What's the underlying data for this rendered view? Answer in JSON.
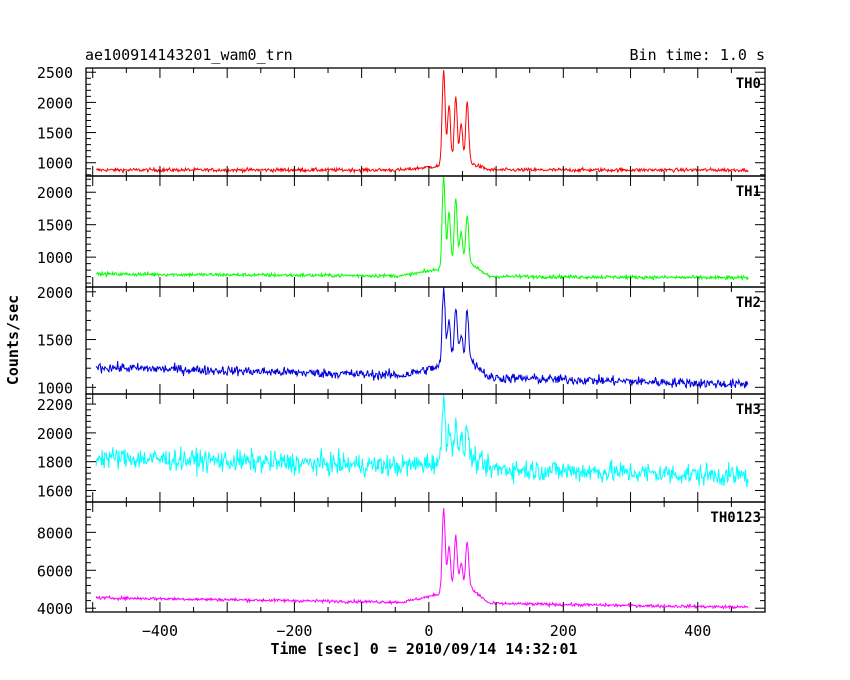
{
  "chart_data": {
    "type": "line",
    "title": "ae100914143201_wam0_trn",
    "bin_time_label": "Bin time: 1.0 s",
    "xlabel": "Time [sec] 0 = 2010/09/14 14:32:01",
    "ylabel": "Counts/sec",
    "xlim": [
      -510,
      500
    ],
    "x_range": [
      -495,
      475
    ],
    "x_ticks": [
      -400,
      -200,
      0,
      200,
      400
    ],
    "x_tick_labels": [
      "−400",
      "−200",
      "0",
      "200",
      "400"
    ],
    "grid": false,
    "panels": [
      {
        "name": "TH0",
        "color": "#ff0000",
        "ylim": [
          780,
          2570
        ],
        "y_ticks": [
          1000,
          1500,
          2000,
          2500
        ],
        "y_tick_labels": [
          "1000",
          "1500",
          "2000",
          "2500"
        ],
        "baseline_start": 880,
        "baseline_end": 880,
        "noise": 30,
        "rise_level": 1000,
        "peaks": [
          [
            22,
            2550
          ],
          [
            30,
            1950
          ],
          [
            40,
            2100
          ],
          [
            48,
            1650
          ],
          [
            57,
            2000
          ]
        ]
      },
      {
        "name": "TH1",
        "color": "#00ff00",
        "ylim": [
          540,
          2250
        ],
        "y_ticks": [
          1000,
          1500,
          2000
        ],
        "y_tick_labels": [
          "1000",
          "1500",
          "2000"
        ],
        "baseline_start": 740,
        "baseline_end": 680,
        "noise": 28,
        "rise_level": 900,
        "peaks": [
          [
            22,
            2230
          ],
          [
            30,
            1700
          ],
          [
            40,
            1900
          ],
          [
            48,
            1400
          ],
          [
            57,
            1650
          ]
        ]
      },
      {
        "name": "TH2",
        "color": "#0000dd",
        "ylim": [
          930,
          2050
        ],
        "y_ticks": [
          1000,
          1500,
          2000
        ],
        "y_tick_labels": [
          "1000",
          "1500",
          "2000"
        ],
        "baseline_start": 1210,
        "baseline_end": 1030,
        "noise": 50,
        "rise_level": 1300,
        "peaks": [
          [
            22,
            2030
          ],
          [
            30,
            1700
          ],
          [
            40,
            1850
          ],
          [
            48,
            1550
          ],
          [
            57,
            1800
          ]
        ]
      },
      {
        "name": "TH3",
        "color": "#00ffff",
        "ylim": [
          1520,
          2270
        ],
        "y_ticks": [
          1600,
          1800,
          2000,
          2200
        ],
        "y_tick_labels": [
          "1600",
          "1800",
          "2000",
          "2200"
        ],
        "baseline_start": 1830,
        "baseline_end": 1700,
        "noise": 75,
        "rise_level": 1830,
        "peaks": [
          [
            22,
            2260
          ],
          [
            30,
            2050
          ],
          [
            40,
            2100
          ],
          [
            48,
            1950
          ],
          [
            57,
            2050
          ]
        ]
      },
      {
        "name": "TH0123",
        "color": "#ff00ff",
        "ylim": [
          3800,
          9600
        ],
        "y_ticks": [
          4000,
          6000,
          8000
        ],
        "y_tick_labels": [
          "4000",
          "6000",
          "8000"
        ],
        "baseline_start": 4550,
        "baseline_end": 4050,
        "noise": 80,
        "rise_level": 5100,
        "peaks": [
          [
            22,
            9300
          ],
          [
            30,
            7300
          ],
          [
            40,
            7800
          ],
          [
            48,
            6400
          ],
          [
            57,
            7500
          ]
        ]
      }
    ]
  }
}
